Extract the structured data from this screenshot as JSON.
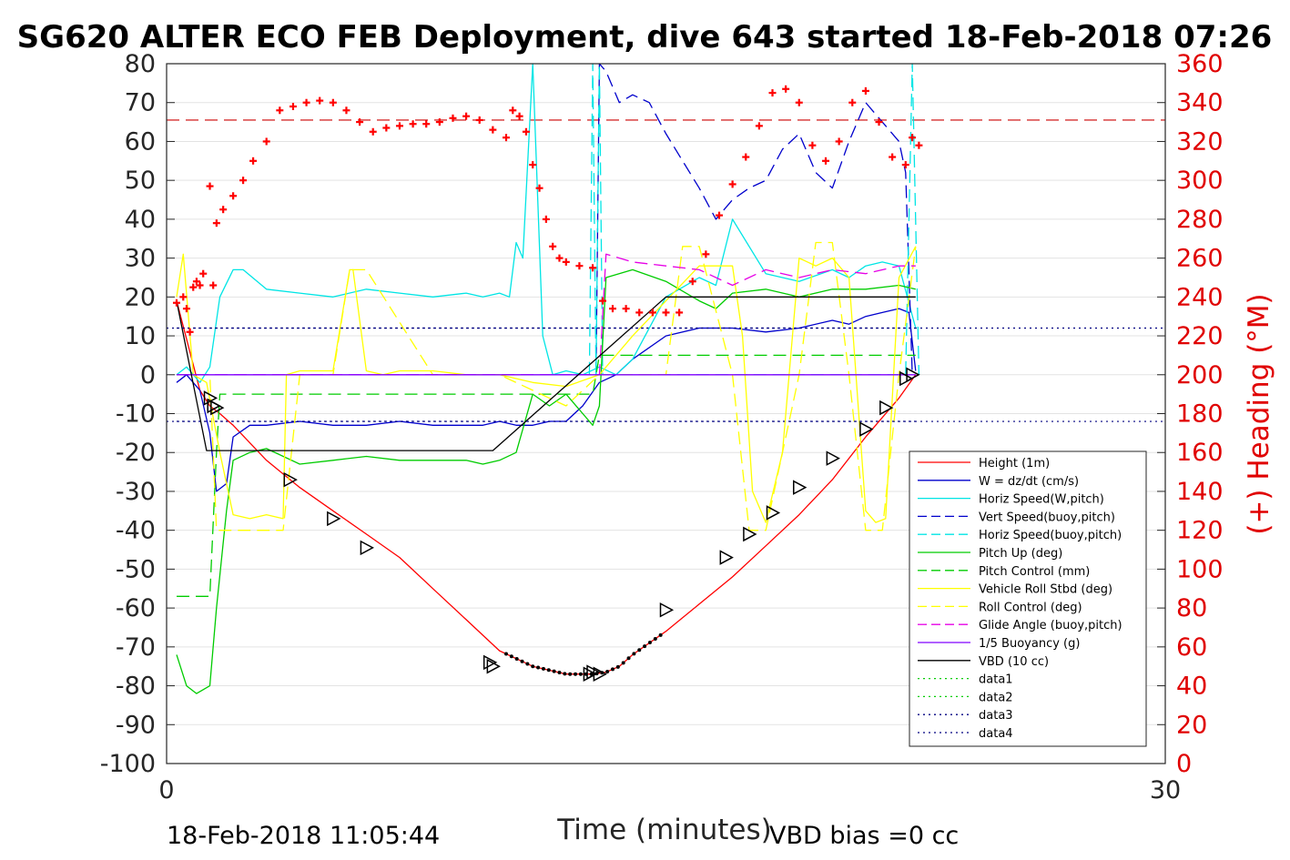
{
  "chart_data": {
    "type": "line",
    "title": "SG620 ALTER ECO FEB Deployment, dive 643 started 18-Feb-2018 07:26",
    "xlabel": "Time (minutes)",
    "ylabel": "",
    "y2label": "(+) Heading (°M)",
    "xlim": [
      0,
      30
    ],
    "ylim": [
      -100,
      80
    ],
    "y2lim": [
      0,
      360
    ],
    "xticks": [
      "0",
      "30"
    ],
    "yticks": [
      "80",
      "70",
      "60",
      "50",
      "40",
      "30",
      "20",
      "10",
      "0",
      "-10",
      "-20",
      "-30",
      "-40",
      "-50",
      "-60",
      "-70",
      "-80",
      "-90",
      "-100"
    ],
    "y2ticks": [
      "360",
      "340",
      "320",
      "300",
      "280",
      "260",
      "240",
      "220",
      "200",
      "180",
      "160",
      "140",
      "120",
      "100",
      "80",
      "60",
      "40",
      "20",
      "0"
    ],
    "grid": true,
    "legend_position": "lower-right",
    "footer_left": "18-Feb-2018 11:05:44",
    "footer_right": "VBD bias =0 cc",
    "heading_ref_lines": [
      {
        "y": 65.5,
        "color": "#cc0000",
        "dash": "long"
      },
      {
        "y": 12,
        "color": "#000080",
        "dash": "dot"
      },
      {
        "y": -12,
        "color": "#000080",
        "dash": "dot"
      }
    ],
    "series": [
      {
        "name": "Height (1m)",
        "color": "#ff0000",
        "dash": "solid",
        "axis": "left",
        "x": [
          0.3,
          1.0,
          1.3,
          1.6,
          2.0,
          3.0,
          4.0,
          5.0,
          6.0,
          7.0,
          8.0,
          9.0,
          9.5,
          10.0,
          11.0,
          12.0,
          12.8,
          13.2,
          13.6,
          14.0,
          15.0,
          16.0,
          17.0,
          18.0,
          19.0,
          20.0,
          21.0,
          22.0,
          22.5
        ],
        "y": [
          19,
          -4,
          -8,
          -10,
          -13,
          -22,
          -29,
          -35,
          -41,
          -47,
          -55,
          -63,
          -67,
          -71,
          -75,
          -77,
          -77,
          -76.5,
          -75,
          -72,
          -66,
          -59,
          -52,
          -44,
          -36,
          -27,
          -16,
          -6,
          0
        ]
      },
      {
        "name": "W = dz/dt (cm/s)",
        "color": "#0000cc",
        "dash": "solid",
        "axis": "left",
        "x": [
          0.3,
          0.6,
          1.0,
          1.3,
          1.5,
          1.8,
          2.0,
          2.5,
          3.0,
          4.0,
          5.0,
          6.0,
          7.0,
          8.0,
          9.0,
          9.5,
          10.0,
          10.5,
          11.0,
          11.5,
          12.0,
          12.5,
          13.0,
          13.5,
          14.0,
          15.0,
          16.0,
          17.0,
          18.0,
          19.0,
          20.0,
          20.5,
          21.0,
          21.5,
          22.0,
          22.3,
          22.5
        ],
        "y": [
          -2,
          0,
          -4,
          -15,
          -30,
          -28,
          -16,
          -13,
          -13,
          -12,
          -13,
          -13,
          -12,
          -13,
          -13,
          -13,
          -12,
          -13,
          -13,
          -12,
          -12,
          -8,
          -2,
          0,
          4,
          10,
          12,
          12,
          11,
          12,
          14,
          13,
          15,
          16,
          17,
          16,
          1
        ]
      },
      {
        "name": "Horiz Speed(W,pitch)",
        "color": "#00e5e5",
        "dash": "solid",
        "axis": "left",
        "x": [
          0.3,
          0.6,
          1.0,
          1.3,
          1.6,
          2.0,
          2.3,
          3.0,
          4.0,
          5.0,
          6.0,
          7.0,
          8.0,
          9.0,
          9.5,
          10.0,
          10.3,
          10.5,
          10.7,
          11.0,
          11.3,
          11.6,
          12.0,
          12.5,
          13.0,
          13.5,
          14.0,
          15.0,
          16.0,
          16.5,
          17.0,
          18.0,
          19.0,
          20.0,
          20.5,
          21.0,
          21.5,
          22.0,
          22.5
        ],
        "y": [
          0,
          2,
          -2,
          2,
          20,
          27,
          27,
          22,
          21,
          20,
          22,
          21,
          20,
          21,
          20,
          21,
          20,
          34,
          30,
          80,
          10,
          0,
          1,
          0,
          2,
          0,
          4,
          20,
          25,
          23,
          40,
          26,
          24,
          27,
          25,
          28,
          29,
          28,
          12
        ]
      },
      {
        "name": "Vert Speed(buoy,pitch)",
        "color": "#0000cc",
        "dash": "long",
        "axis": "left",
        "x": [
          12.9,
          13.0,
          13.2,
          13.4,
          13.6,
          14.0,
          14.5,
          15.0,
          15.5,
          16.0,
          16.5,
          17.0,
          17.5,
          18.0,
          18.5,
          19.0,
          19.5,
          20.0,
          20.5,
          21.0,
          21.5,
          22.0,
          22.2,
          22.4
        ],
        "y": [
          0,
          80,
          78,
          74,
          70,
          72,
          70,
          62,
          55,
          48,
          40,
          45,
          48,
          50,
          58,
          62,
          52,
          48,
          60,
          70,
          65,
          60,
          52,
          0
        ]
      },
      {
        "name": "Horiz Speed(buoy,pitch)",
        "color": "#00e5e5",
        "dash": "long",
        "axis": "left",
        "x": [
          12.7,
          12.8,
          12.9,
          13.0,
          13.1,
          22.2,
          22.4,
          22.6
        ],
        "y": [
          0,
          80,
          0,
          80,
          0,
          0,
          80,
          0
        ]
      },
      {
        "name": "Pitch Up (deg)",
        "color": "#00cc00",
        "dash": "solid",
        "axis": "left",
        "x": [
          0.3,
          0.6,
          0.9,
          1.1,
          1.3,
          1.5,
          1.8,
          2.0,
          2.5,
          3.0,
          4.0,
          5.0,
          6.0,
          7.0,
          8.0,
          9.0,
          9.5,
          10.0,
          10.5,
          11.0,
          11.5,
          12.0,
          12.5,
          12.8,
          13.0,
          13.2,
          14.0,
          15.0,
          16.0,
          16.5,
          17.0,
          18.0,
          19.0,
          20.0,
          21.0,
          22.0,
          22.5
        ],
        "y": [
          -72,
          -80,
          -82,
          -81,
          -80,
          -60,
          -35,
          -22,
          -20,
          -19,
          -23,
          -22,
          -21,
          -22,
          -22,
          -22,
          -23,
          -22,
          -20,
          -5,
          -8,
          -5,
          -10,
          -13,
          -8,
          25,
          27,
          24,
          19,
          17,
          21,
          22,
          20,
          22,
          22,
          23,
          22
        ]
      },
      {
        "name": "Pitch Control (mm)",
        "color": "#00cc00",
        "dash": "long",
        "axis": "left",
        "x": [
          0.3,
          1.3,
          1.4,
          1.5,
          1.6,
          2.0,
          5.0,
          8.0,
          10.0,
          12.0,
          12.8,
          13.0,
          14.0,
          18.0,
          22.5
        ],
        "y": [
          -57,
          -57,
          -38,
          -20,
          -5,
          -5,
          -5,
          -5,
          -5,
          -5,
          -5,
          5,
          5,
          5,
          5
        ]
      },
      {
        "name": "Vehicle Roll Stbd (deg)",
        "color": "#ffff00",
        "dash": "solid",
        "axis": "left",
        "x": [
          0.3,
          0.5,
          0.8,
          1.2,
          1.6,
          2.0,
          2.5,
          3.0,
          3.5,
          3.6,
          4.0,
          4.5,
          5.0,
          5.5,
          5.6,
          6.0,
          6.5,
          7.0,
          7.5,
          8.0,
          9.0,
          10.0,
          11.0,
          12.0,
          13.0,
          14.0,
          15.0,
          16.0,
          17.0,
          17.3,
          17.6,
          18.0,
          18.5,
          19.0,
          19.5,
          20.0,
          20.5,
          21.0,
          21.3,
          21.6,
          22.0,
          22.5
        ],
        "y": [
          20,
          31,
          0,
          -2,
          -20,
          -36,
          -37,
          -36,
          -37,
          0,
          1,
          1,
          1,
          27,
          27,
          1,
          0,
          1,
          1,
          1,
          0,
          0,
          -2,
          -3,
          0,
          10,
          19,
          28,
          28,
          10,
          -30,
          -38,
          -20,
          30,
          28,
          30,
          25,
          -35,
          -38,
          -37,
          25,
          33
        ]
      },
      {
        "name": "Roll Control (deg)",
        "color": "#ffff00",
        "dash": "long",
        "axis": "left",
        "x": [
          0.3,
          1.3,
          1.5,
          2.0,
          3.0,
          3.5,
          4.0,
          5.0,
          5.5,
          6.0,
          8.0,
          10.0,
          12.0,
          13.0,
          15.0,
          15.5,
          16.0,
          17.0,
          17.5,
          18.0,
          19.0,
          19.5,
          20.0,
          20.5,
          21.0,
          21.5,
          22.0,
          22.5
        ],
        "y": [
          0,
          0,
          -40,
          -40,
          -40,
          -40,
          0,
          0,
          27,
          27,
          0,
          0,
          -8,
          0,
          0,
          33,
          33,
          0,
          -40,
          -40,
          0,
          34,
          34,
          0,
          -40,
          -40,
          0,
          33
        ]
      },
      {
        "name": "Glide Angle (buoy,pitch)",
        "color": "#e600e6",
        "dash": "long",
        "axis": "left",
        "x": [
          0.3,
          13.0,
          13.2,
          14.0,
          15.0,
          16.0,
          17.0,
          18.0,
          19.0,
          20.0,
          21.0,
          22.0,
          22.5
        ],
        "y": [
          0,
          0,
          31,
          29,
          28,
          27,
          23,
          27,
          25,
          27,
          26,
          28,
          28
        ]
      },
      {
        "name": "1/5 Buoyancy (g)",
        "color": "#8000ff",
        "dash": "solid",
        "axis": "left",
        "x": [
          0.3,
          22.5
        ],
        "y": [
          0,
          0
        ]
      },
      {
        "name": "VBD (10 cc)",
        "color": "#000000",
        "dash": "solid",
        "axis": "left",
        "x": [
          0.3,
          1.2,
          9.8,
          15.0,
          22.5
        ],
        "y": [
          19,
          -19.5,
          -19.5,
          20,
          20
        ]
      },
      {
        "name": "data1",
        "color": "#00cc00",
        "dash": "dot",
        "axis": "left",
        "x": [],
        "y": []
      },
      {
        "name": "data2",
        "color": "#00cc00",
        "dash": "dot",
        "axis": "left",
        "x": [],
        "y": []
      },
      {
        "name": "data3",
        "color": "#000080",
        "dash": "dot",
        "axis": "left",
        "x": [
          0.3,
          22.5
        ],
        "y": [
          12,
          12
        ]
      },
      {
        "name": "data4",
        "color": "#000080",
        "dash": "dot",
        "axis": "left",
        "x": [
          0.3,
          22.5
        ],
        "y": [
          -12,
          -12
        ]
      }
    ],
    "heading_points": {
      "axis": "right",
      "color": "#ff0000",
      "marker": "plus",
      "x": [
        0.3,
        0.5,
        0.6,
        0.7,
        0.8,
        0.9,
        1.0,
        1.1,
        1.3,
        1.4,
        1.5,
        1.7,
        2.0,
        2.3,
        2.6,
        3.0,
        3.4,
        3.8,
        4.2,
        4.6,
        5.0,
        5.4,
        5.8,
        6.2,
        6.6,
        7.0,
        7.4,
        7.8,
        8.2,
        8.6,
        9.0,
        9.4,
        9.8,
        10.2,
        10.4,
        10.6,
        10.8,
        11.0,
        11.2,
        11.4,
        11.6,
        11.8,
        12.0,
        12.4,
        12.8,
        13.1,
        13.4,
        13.8,
        14.2,
        14.6,
        15.0,
        15.4,
        15.8,
        16.2,
        16.6,
        17.0,
        17.4,
        17.8,
        18.2,
        18.6,
        19.0,
        19.4,
        19.8,
        20.2,
        20.6,
        21.0,
        21.4,
        21.8,
        22.2,
        22.4,
        22.6
      ],
      "y": [
        237,
        240,
        234,
        222,
        245,
        248,
        246,
        252,
        297,
        246,
        278,
        285,
        292,
        300,
        310,
        320,
        336,
        338,
        340,
        341,
        340,
        336,
        330,
        325,
        327,
        328,
        329,
        329,
        330,
        332,
        333,
        331,
        326,
        322,
        336,
        333,
        325,
        308,
        296,
        280,
        266,
        260,
        258,
        256,
        255,
        238,
        234,
        234,
        232,
        232,
        232,
        232,
        248,
        262,
        282,
        298,
        312,
        328,
        345,
        347,
        340,
        318,
        310,
        320,
        340,
        346,
        330,
        312,
        308,
        322,
        318
      ]
    },
    "triangles": {
      "axis": "left",
      "x": [
        1.3,
        1.4,
        1.5,
        3.7,
        5.0,
        6.0,
        9.7,
        9.8,
        12.7,
        12.8,
        13.0,
        15.0,
        16.8,
        17.5,
        18.2,
        19.0,
        20.0,
        21.0,
        21.6,
        22.2,
        22.4
      ],
      "y": [
        -6,
        -8,
        -8.5,
        -27,
        -37,
        -44.5,
        -74,
        -75,
        -77,
        -76.5,
        -77,
        -60.5,
        -47,
        -41,
        -35.5,
        -29,
        -21.5,
        -14,
        -8.5,
        -1,
        0
      ]
    }
  }
}
